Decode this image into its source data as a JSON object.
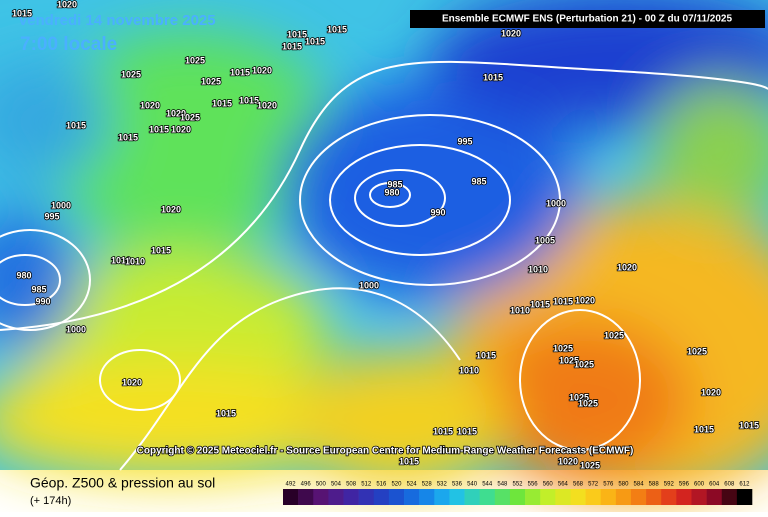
{
  "header": {
    "date": "Vendredi 14 novembre 2025",
    "time": "7:00 locale",
    "run": "Ensemble ECMWF ENS  (Perturbation 21)  -  00 Z du 07/11/2025"
  },
  "footer": {
    "copyright": "Copyright © 2025 Meteociel.fr - Source European Centre for Medium-Range Weather Forecasts (ECMWF)"
  },
  "legend": {
    "title": "Géop. Z500 & pression au sol",
    "lead": "(+ 174h)",
    "ticks": [
      492,
      496,
      500,
      504,
      508,
      512,
      516,
      520,
      524,
      528,
      532,
      536,
      540,
      544,
      548,
      552,
      556,
      560,
      564,
      568,
      572,
      576,
      580,
      584,
      588,
      592,
      596,
      600,
      604,
      608,
      612
    ]
  },
  "isobars": [
    1020,
    1015,
    1015,
    1015,
    1015,
    1015,
    1020,
    1025,
    1025,
    1025,
    1015,
    1020,
    1020,
    1020,
    1025,
    1015,
    1015,
    1020,
    1015,
    1015,
    1015,
    1020,
    1015,
    995,
    985,
    980,
    985,
    990,
    1000,
    995,
    1020,
    1000,
    1005,
    1015,
    1010,
    1010,
    980,
    985,
    990,
    1000,
    1010,
    1020,
    1010,
    1015,
    1015,
    1020,
    1000,
    1025,
    1025,
    1015,
    1025,
    1025,
    1025,
    1010,
    1020,
    1020,
    1025,
    1025,
    1015,
    1015,
    1015,
    1015,
    1015,
    1015,
    1025,
    1020
  ]
}
